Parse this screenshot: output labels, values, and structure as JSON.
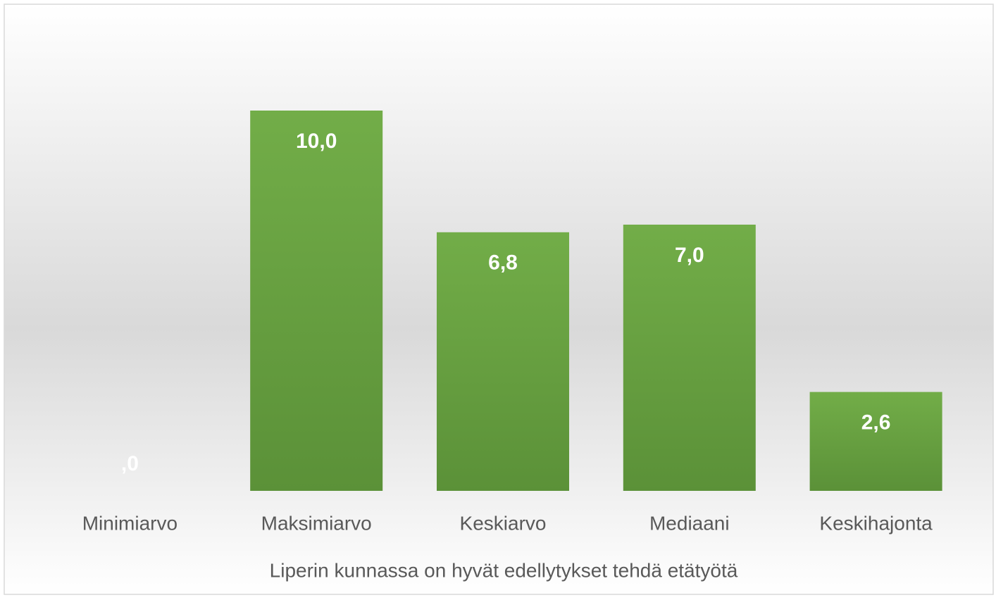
{
  "chart_data": {
    "type": "bar",
    "categories": [
      "Minimiarvo",
      "Maksimiarvo",
      "Keskiarvo",
      "Mediaani",
      "Keskihajonta"
    ],
    "values": [
      0,
      10.0,
      6.8,
      7.0,
      2.6
    ],
    "value_labels": [
      ",0",
      "10,0",
      "6,8",
      "7,0",
      "2,6"
    ],
    "xlabel": "Liperin kunnassa on hyvät edellytykset tehdä etätyötä",
    "color": "#70ad47",
    "ylim": [
      0,
      10
    ]
  }
}
